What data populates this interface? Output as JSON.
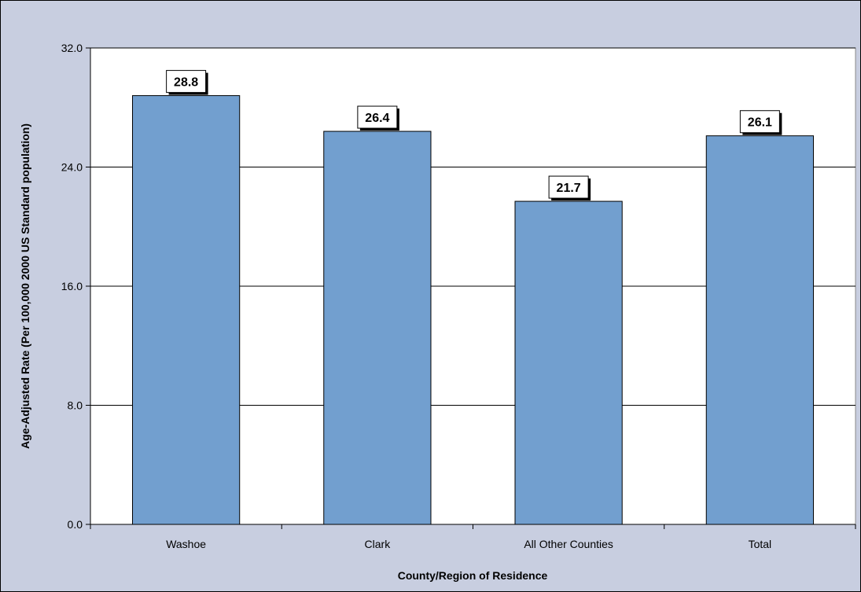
{
  "chart_data": {
    "type": "bar",
    "categories": [
      "Washoe",
      "Clark",
      "All Other Counties",
      "Total"
    ],
    "values": [
      28.8,
      26.4,
      21.7,
      26.1
    ],
    "data_labels": [
      "28.8",
      "26.4",
      "21.7",
      "26.1"
    ],
    "xlabel": "County/Region of Residence",
    "ylabel": "Age-Adjusted Rate (Per 100,000 2000 US Standard population)",
    "ylim": [
      0,
      32
    ],
    "yticks": [
      0,
      8,
      16,
      24,
      32
    ],
    "ytick_labels": [
      "0.0",
      "8.0",
      "16.0",
      "24.0",
      "32.0"
    ],
    "grid": true,
    "legend": "none",
    "colors": {
      "bar": "#729fcf",
      "plot_background": "#ffffff",
      "frame_background": "#c8cee0",
      "gridline": "#000000"
    }
  }
}
